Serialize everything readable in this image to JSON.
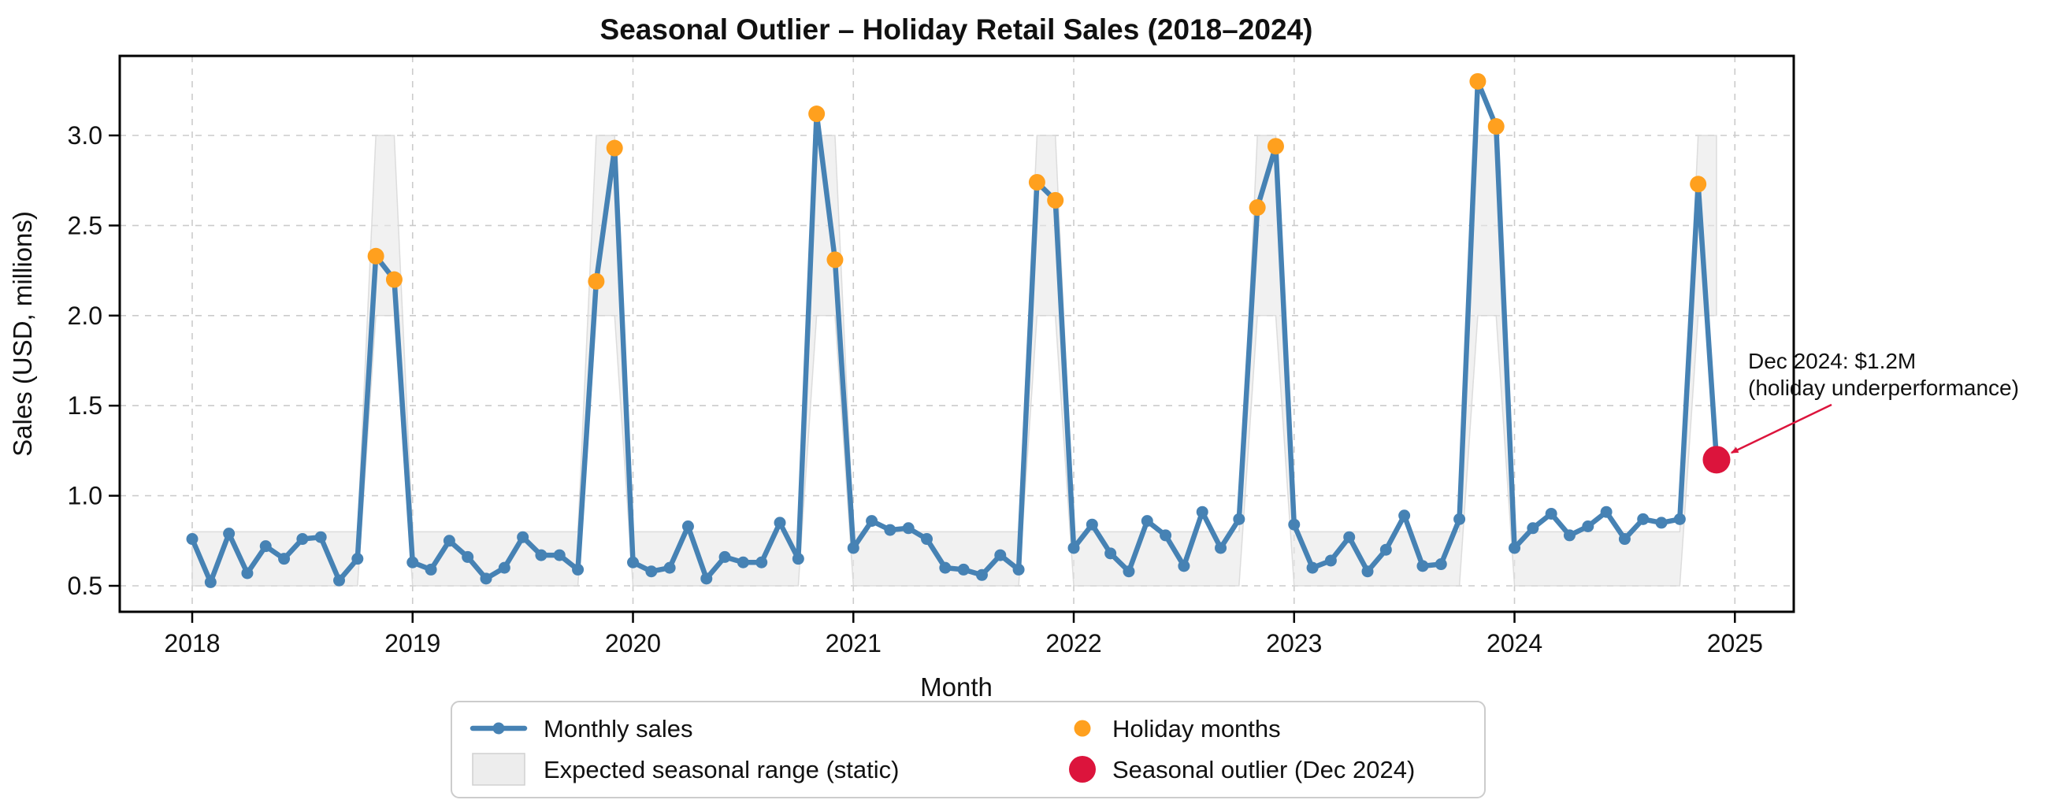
{
  "chart": {
    "title": "Seasonal Outlier – Holiday Retail Sales (2018–2024)",
    "xlabel": "Month",
    "ylabel": "Sales (USD, millions)"
  },
  "annotation": {
    "line1": "Dec 2024: $1.2M",
    "line2": "(holiday underperformance)"
  },
  "legend": {
    "items": [
      {
        "label": "Monthly sales",
        "swatch": "line"
      },
      {
        "label": "Expected seasonal range (static)",
        "swatch": "patch"
      },
      {
        "label": "Holiday months",
        "swatch": "dot-small"
      },
      {
        "label": "Seasonal outlier (Dec 2024)",
        "swatch": "dot-large"
      }
    ]
  },
  "colors": {
    "line": "#4682B4",
    "holiday": "#FFA01E",
    "outlier": "#DC143C",
    "band_fill": "#E8E8E8",
    "band_edge": "#D6D6D6",
    "grid": "#CBCBCB",
    "frame": "#000000",
    "annotation": "#DC143C"
  },
  "chart_data": {
    "type": "line",
    "title": "Seasonal Outlier – Holiday Retail Sales (2018–2024)",
    "xlabel": "Month",
    "ylabel": "Sales (USD, millions)",
    "x_start_year": 2018,
    "x_tick_labels": [
      "2018",
      "2019",
      "2020",
      "2021",
      "2022",
      "2023",
      "2024",
      "2025"
    ],
    "y_tick_values": [
      0.5,
      1.0,
      1.5,
      2.0,
      2.5,
      3.0
    ],
    "ylim": [
      0.36,
      3.44
    ],
    "grid": true,
    "legend_position": "bottom-center",
    "series": [
      {
        "name": "Monthly sales",
        "values": [
          0.76,
          0.52,
          0.79,
          0.57,
          0.72,
          0.65,
          0.76,
          0.77,
          0.53,
          0.65,
          2.33,
          2.2,
          0.63,
          0.59,
          0.75,
          0.66,
          0.54,
          0.6,
          0.77,
          0.67,
          0.67,
          0.59,
          2.19,
          2.93,
          0.63,
          0.58,
          0.6,
          0.83,
          0.54,
          0.66,
          0.63,
          0.63,
          0.85,
          0.65,
          3.12,
          2.31,
          0.71,
          0.86,
          0.81,
          0.82,
          0.76,
          0.6,
          0.59,
          0.56,
          0.67,
          0.59,
          2.74,
          2.64,
          0.71,
          0.84,
          0.68,
          0.58,
          0.86,
          0.78,
          0.61,
          0.91,
          0.71,
          0.87,
          2.6,
          2.94,
          0.84,
          0.6,
          0.64,
          0.77,
          0.58,
          0.7,
          0.89,
          0.61,
          0.62,
          0.87,
          3.3,
          3.05,
          0.71,
          0.82,
          0.9,
          0.78,
          0.83,
          0.91,
          0.76,
          0.87,
          0.85,
          0.87,
          2.73,
          1.2
        ]
      }
    ],
    "holiday_indices": [
      10,
      11,
      22,
      23,
      34,
      35,
      46,
      47,
      58,
      59,
      70,
      71,
      82
    ],
    "outlier": {
      "index": 83,
      "value": 1.2,
      "month": "Dec 2024",
      "label": "Seasonal outlier (Dec 2024)"
    },
    "expected_range": {
      "label": "Expected seasonal range (static)",
      "normal_low": 0.5,
      "normal_high": 0.8,
      "holiday_low": 2.0,
      "holiday_high": 3.0,
      "holiday_months": [
        "Nov",
        "Dec"
      ]
    },
    "annotation": {
      "text": "Dec 2024: $1.2M (holiday underperformance)",
      "points_to": "Dec 2024"
    }
  }
}
